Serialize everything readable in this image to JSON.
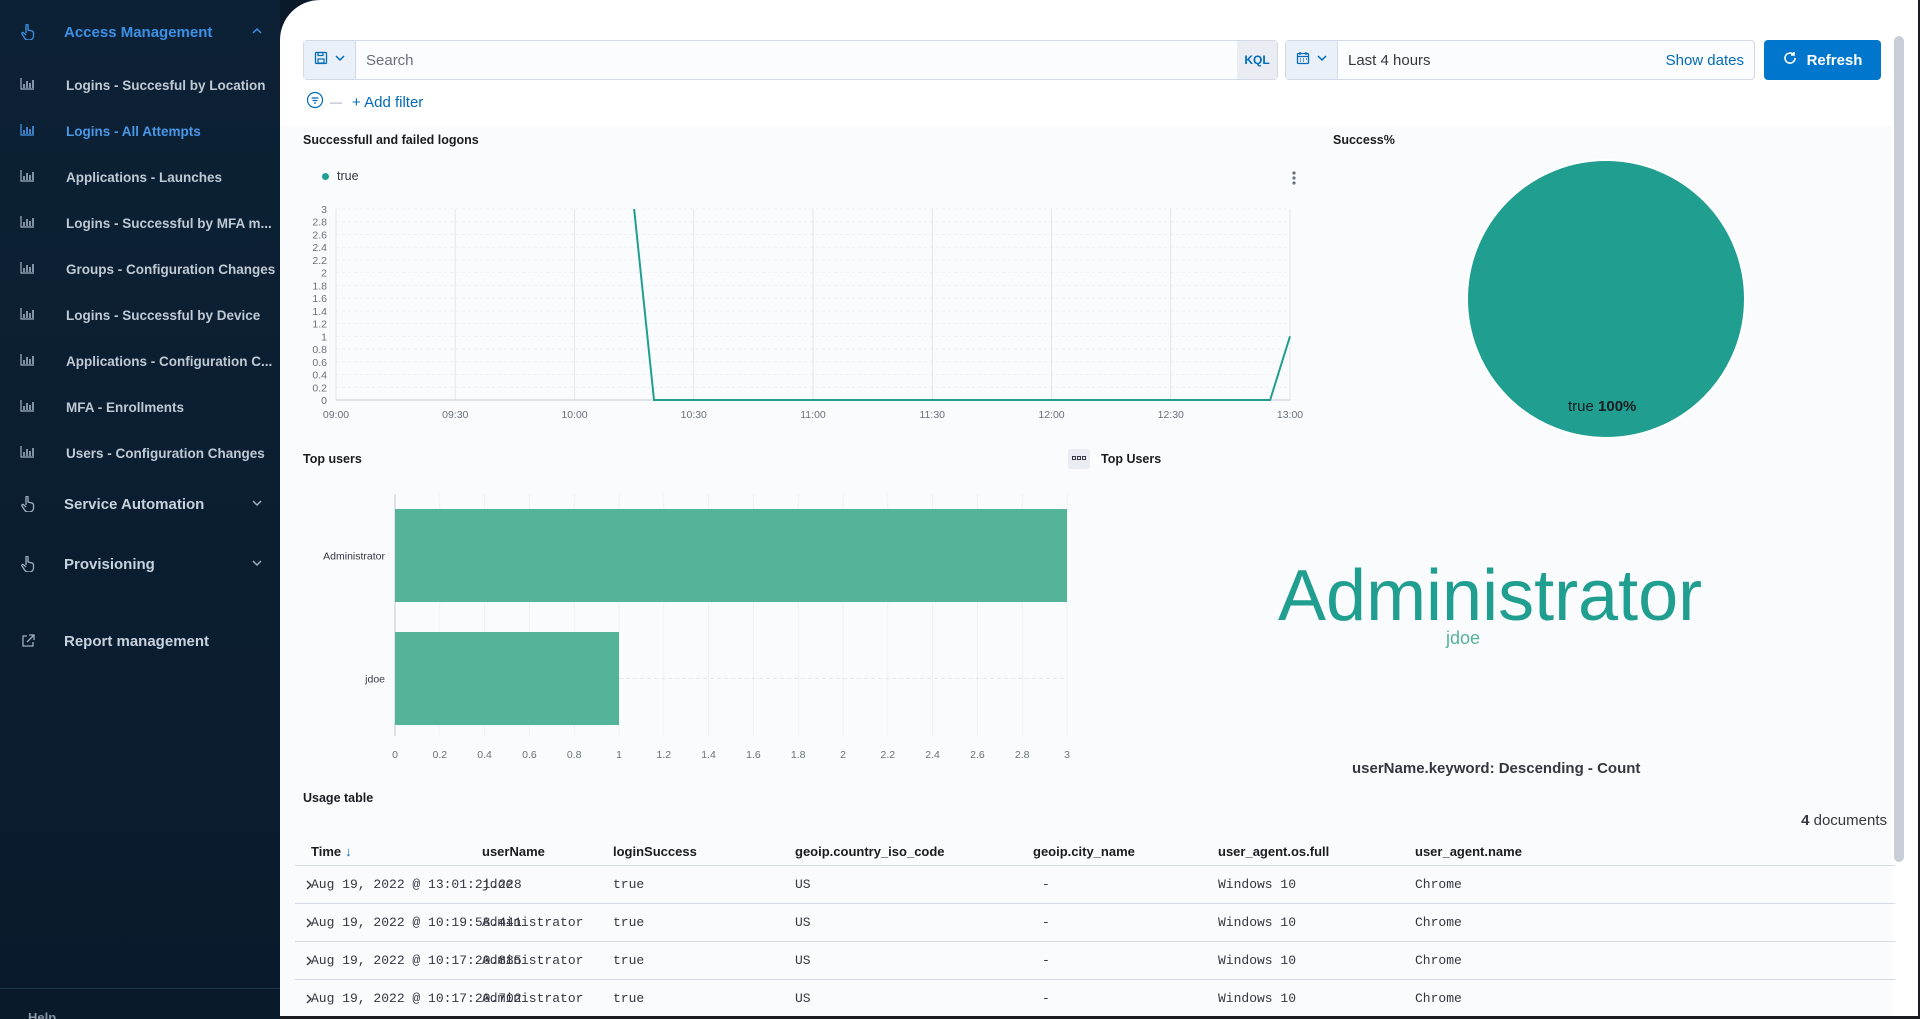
{
  "colors": {
    "accent": "#3c91e6",
    "series": "#209e90",
    "bar": "#54b399",
    "button": "#0077cc"
  },
  "sidebar": {
    "group_access": "Access Management",
    "items": [
      {
        "label": "Logins - Succesful by Location",
        "icon": "bar-chart-icon"
      },
      {
        "label": "Logins - All Attempts",
        "icon": "bar-chart-icon"
      },
      {
        "label": "Applications - Launches",
        "icon": "bar-chart-icon"
      },
      {
        "label": "Logins - Successful by MFA m...",
        "icon": "bar-chart-icon"
      },
      {
        "label": "Groups - Configuration Changes",
        "icon": "bar-chart-icon"
      },
      {
        "label": "Logins - Successful by Device",
        "icon": "bar-chart-icon"
      },
      {
        "label": "Applications - Configuration C...",
        "icon": "bar-chart-icon"
      },
      {
        "label": "MFA - Enrollments",
        "icon": "bar-chart-icon"
      },
      {
        "label": "Users - Configuration Changes",
        "icon": "bar-chart-icon"
      }
    ],
    "group_service": "Service Automation",
    "group_provisioning": "Provisioning",
    "report_management": "Report management",
    "bottom_cut": "Help"
  },
  "query": {
    "placeholder": "Search",
    "kql": "KQL",
    "time_range": "Last 4 hours",
    "show_dates": "Show dates",
    "refresh": "Refresh",
    "add_filter": "+ Add filter"
  },
  "panels": {
    "logons_title": "Successfull and failed logons",
    "success_title": "Success%",
    "top_users_bar_title": "Top users",
    "top_users_cloud_title": "Top Users",
    "usage_title": "Usage table"
  },
  "chart_data": [
    {
      "type": "line",
      "title": "Successfull and failed logons",
      "legend": [
        "true"
      ],
      "x_ticks": [
        "09:00",
        "09:30",
        "10:00",
        "10:30",
        "11:00",
        "11:30",
        "12:00",
        "12:30",
        "13:00"
      ],
      "y_ticks": [
        "0",
        "0.2",
        "0.4",
        "0.6",
        "0.8",
        "1",
        "1.2",
        "1.4",
        "1.6",
        "1.8",
        "2",
        "2.2",
        "2.4",
        "2.6",
        "2.8",
        "3"
      ],
      "ylim": [
        0,
        3
      ],
      "series": [
        {
          "name": "true",
          "x": [
            "10:15",
            "10:20",
            "12:55",
            "13:00"
          ],
          "values": [
            3,
            0,
            0,
            1
          ]
        }
      ]
    },
    {
      "type": "pie",
      "title": "Success%",
      "slices": [
        {
          "label": "true",
          "value": 100,
          "value_label": "100%"
        }
      ]
    },
    {
      "type": "bar",
      "orientation": "horizontal",
      "title": "Top users",
      "categories": [
        "Administrator",
        "jdoe"
      ],
      "values": [
        3,
        1
      ],
      "x_ticks": [
        "0",
        "0.2",
        "0.4",
        "0.6",
        "0.8",
        "1",
        "1.2",
        "1.4",
        "1.6",
        "1.8",
        "2",
        "2.2",
        "2.4",
        "2.6",
        "2.8",
        "3"
      ],
      "xlim": [
        0,
        3
      ]
    }
  ],
  "tag_cloud": {
    "words": [
      {
        "text": "Administrator"
      },
      {
        "text": "jdoe"
      }
    ],
    "caption": "userName.keyword: Descending - Count"
  },
  "table": {
    "count": "4",
    "count_label": "documents",
    "columns": [
      "Time",
      "userName",
      "loginSuccess",
      "geoip.country_iso_code",
      "geoip.city_name",
      "user_agent.os.full",
      "user_agent.name"
    ],
    "sort_indicator": "↓",
    "rows": [
      [
        "Aug 19, 2022 @ 13:01:21.228",
        "jdoe",
        "true",
        "US",
        "-",
        "Windows 10",
        "Chrome"
      ],
      [
        "Aug 19, 2022 @ 10:19:58.441",
        "Administrator",
        "true",
        "US",
        "-",
        "Windows 10",
        "Chrome"
      ],
      [
        "Aug 19, 2022 @ 10:17:20.885",
        "Administrator",
        "true",
        "US",
        "-",
        "Windows 10",
        "Chrome"
      ],
      [
        "Aug 19, 2022 @ 10:17:20.702",
        "Administrator",
        "true",
        "US",
        "-",
        "Windows 10",
        "Chrome"
      ]
    ]
  }
}
